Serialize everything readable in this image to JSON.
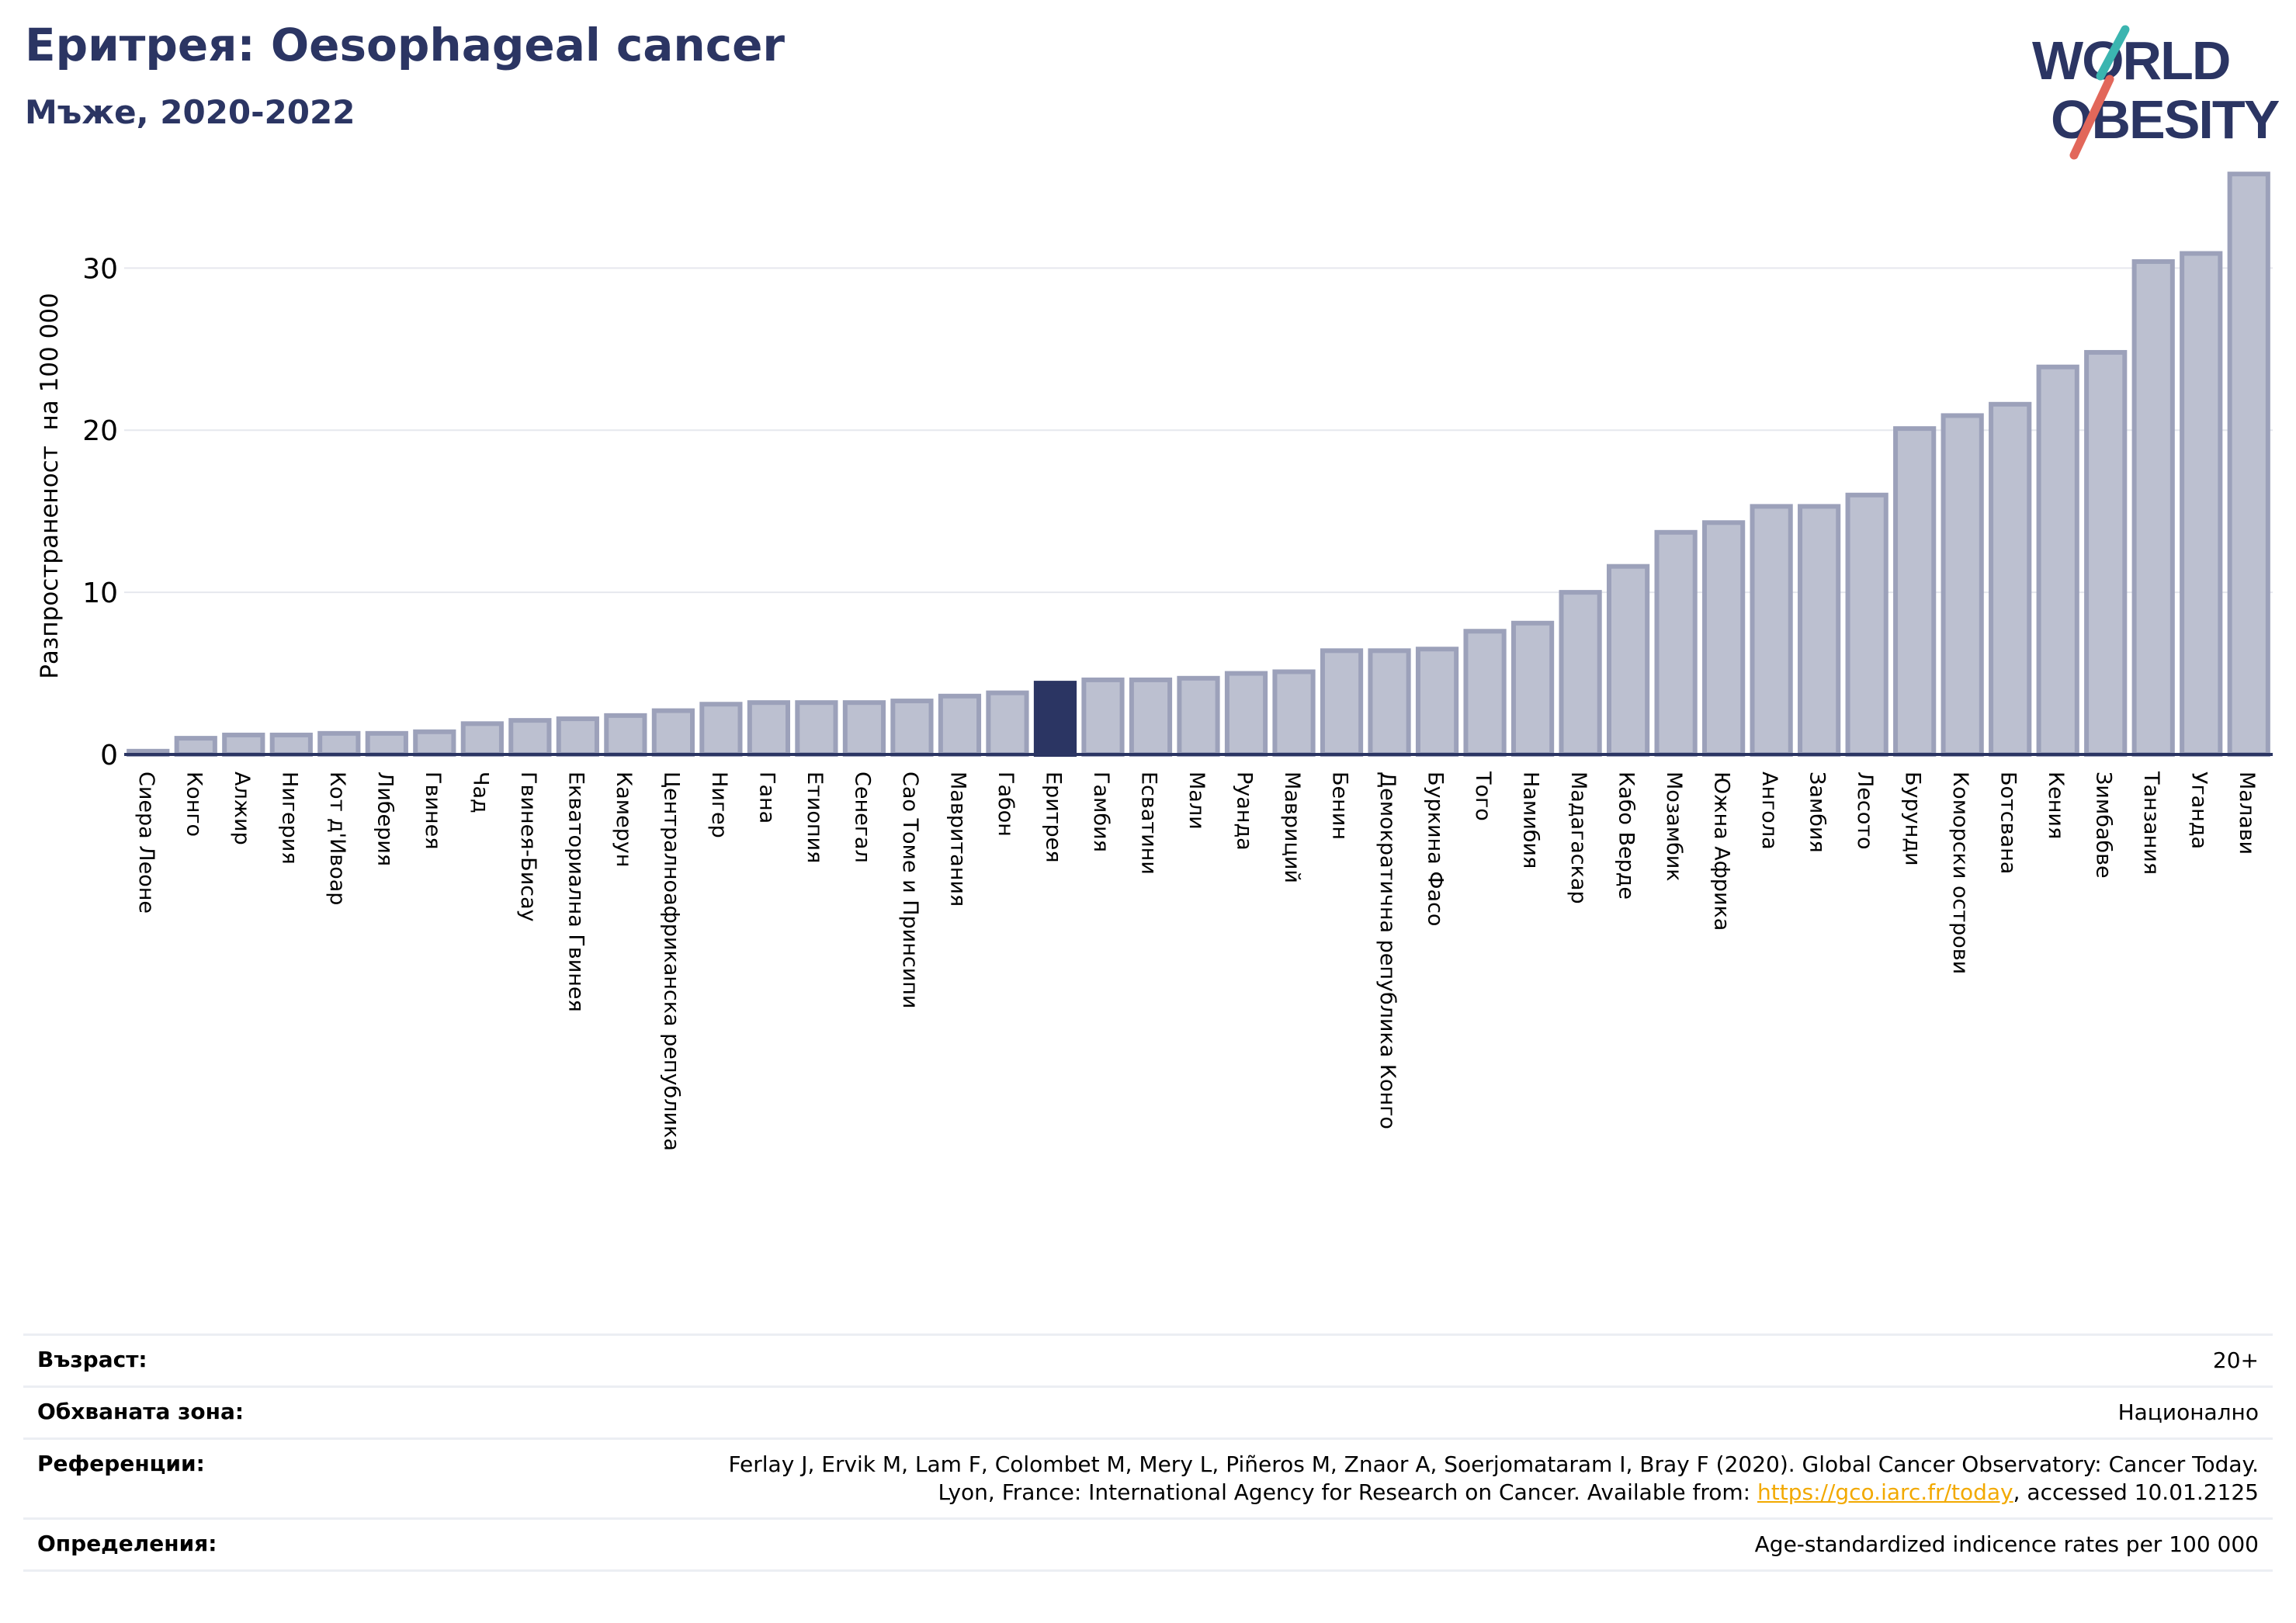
{
  "header": {
    "title": "Еритрея: Oesophageal cancer",
    "subtitle": "Мъже, 2020-2022"
  },
  "logo": {
    "line1": "WORLD",
    "line2": "OBESITY"
  },
  "colors": {
    "bar_fill": "#bcc0d0",
    "bar_stroke": "#9ca1ba",
    "highlight": "#2b3563",
    "axis_text": "#000000",
    "grid": "#e6e8ee",
    "title": "#2b3563",
    "logo_teal": "#3bb5b0",
    "logo_red": "#e2675a"
  },
  "chart_data": {
    "type": "bar",
    "title": "Еритрея: Oesophageal cancer",
    "subtitle": "Мъже, 2020-2022",
    "ylabel": "Разпространеност  на 100 000",
    "xlabel": "",
    "ylim": [
      0,
      36
    ],
    "yticks": [
      0,
      10,
      20,
      30
    ],
    "grid": true,
    "highlight_category": "Еритрея",
    "categories": [
      "Сиера Леоне",
      "Конго",
      "Алжир",
      "Нигерия",
      "Кот д'Ивоар",
      "Либерия",
      "Гвинея",
      "Чад",
      "Гвинея-Бисау",
      "Екваториална Гвинея",
      "Камерун",
      "Централноафриканска република",
      "Нигер",
      "Гана",
      "Етиопия",
      "Сенегал",
      "Сао Томе и Принсипи",
      "Мавритания",
      "Габон",
      "Еритрея",
      "Гамбия",
      "Есватини",
      "Мали",
      "Руанда",
      "Мавриций",
      "Бенин",
      "Демократична република Конго",
      "Буркина Фасо",
      "Того",
      "Намибия",
      "Мадагаскар",
      "Кабо Верде",
      "Мозамбик",
      "Южна Африка",
      "Ангола",
      "Замбия",
      "Лесото",
      "Бурунди",
      "Коморски острови",
      "Ботсвана",
      "Кения",
      "Зимбабве",
      "Танзания",
      "Уганда",
      "Малави"
    ],
    "values": [
      0.2,
      1.0,
      1.2,
      1.2,
      1.3,
      1.3,
      1.4,
      1.9,
      2.1,
      2.2,
      2.4,
      2.7,
      3.1,
      3.2,
      3.2,
      3.2,
      3.3,
      3.6,
      3.8,
      4.4,
      4.6,
      4.6,
      4.7,
      5.0,
      5.1,
      6.4,
      6.4,
      6.5,
      7.6,
      8.1,
      10.0,
      11.6,
      13.7,
      14.3,
      15.3,
      15.3,
      16.0,
      20.1,
      20.9,
      21.6,
      23.9,
      24.8,
      30.4,
      30.9,
      35.8
    ]
  },
  "info": {
    "rows": [
      {
        "label": "Възраст:",
        "value": "20+"
      },
      {
        "label": "Обхваната зона:",
        "value": "Национално"
      },
      {
        "label": "Референции:",
        "value_line1": "Ferlay J, Ervik M, Lam F, Colombet M, Mery L, Piñeros M, Znaor A, Soerjomataram I, Bray F (2020). Global Cancer Observatory: Cancer Today.",
        "value_line2_pre": "Lyon, France: International Agency for Research on Cancer. Available from: ",
        "link": "https://gco.iarc.fr/today",
        "value_line2_post": ", accessed 10.01.2125"
      },
      {
        "label": "Определения:",
        "value": "Age-standardized indicence rates per 100 000"
      }
    ]
  }
}
